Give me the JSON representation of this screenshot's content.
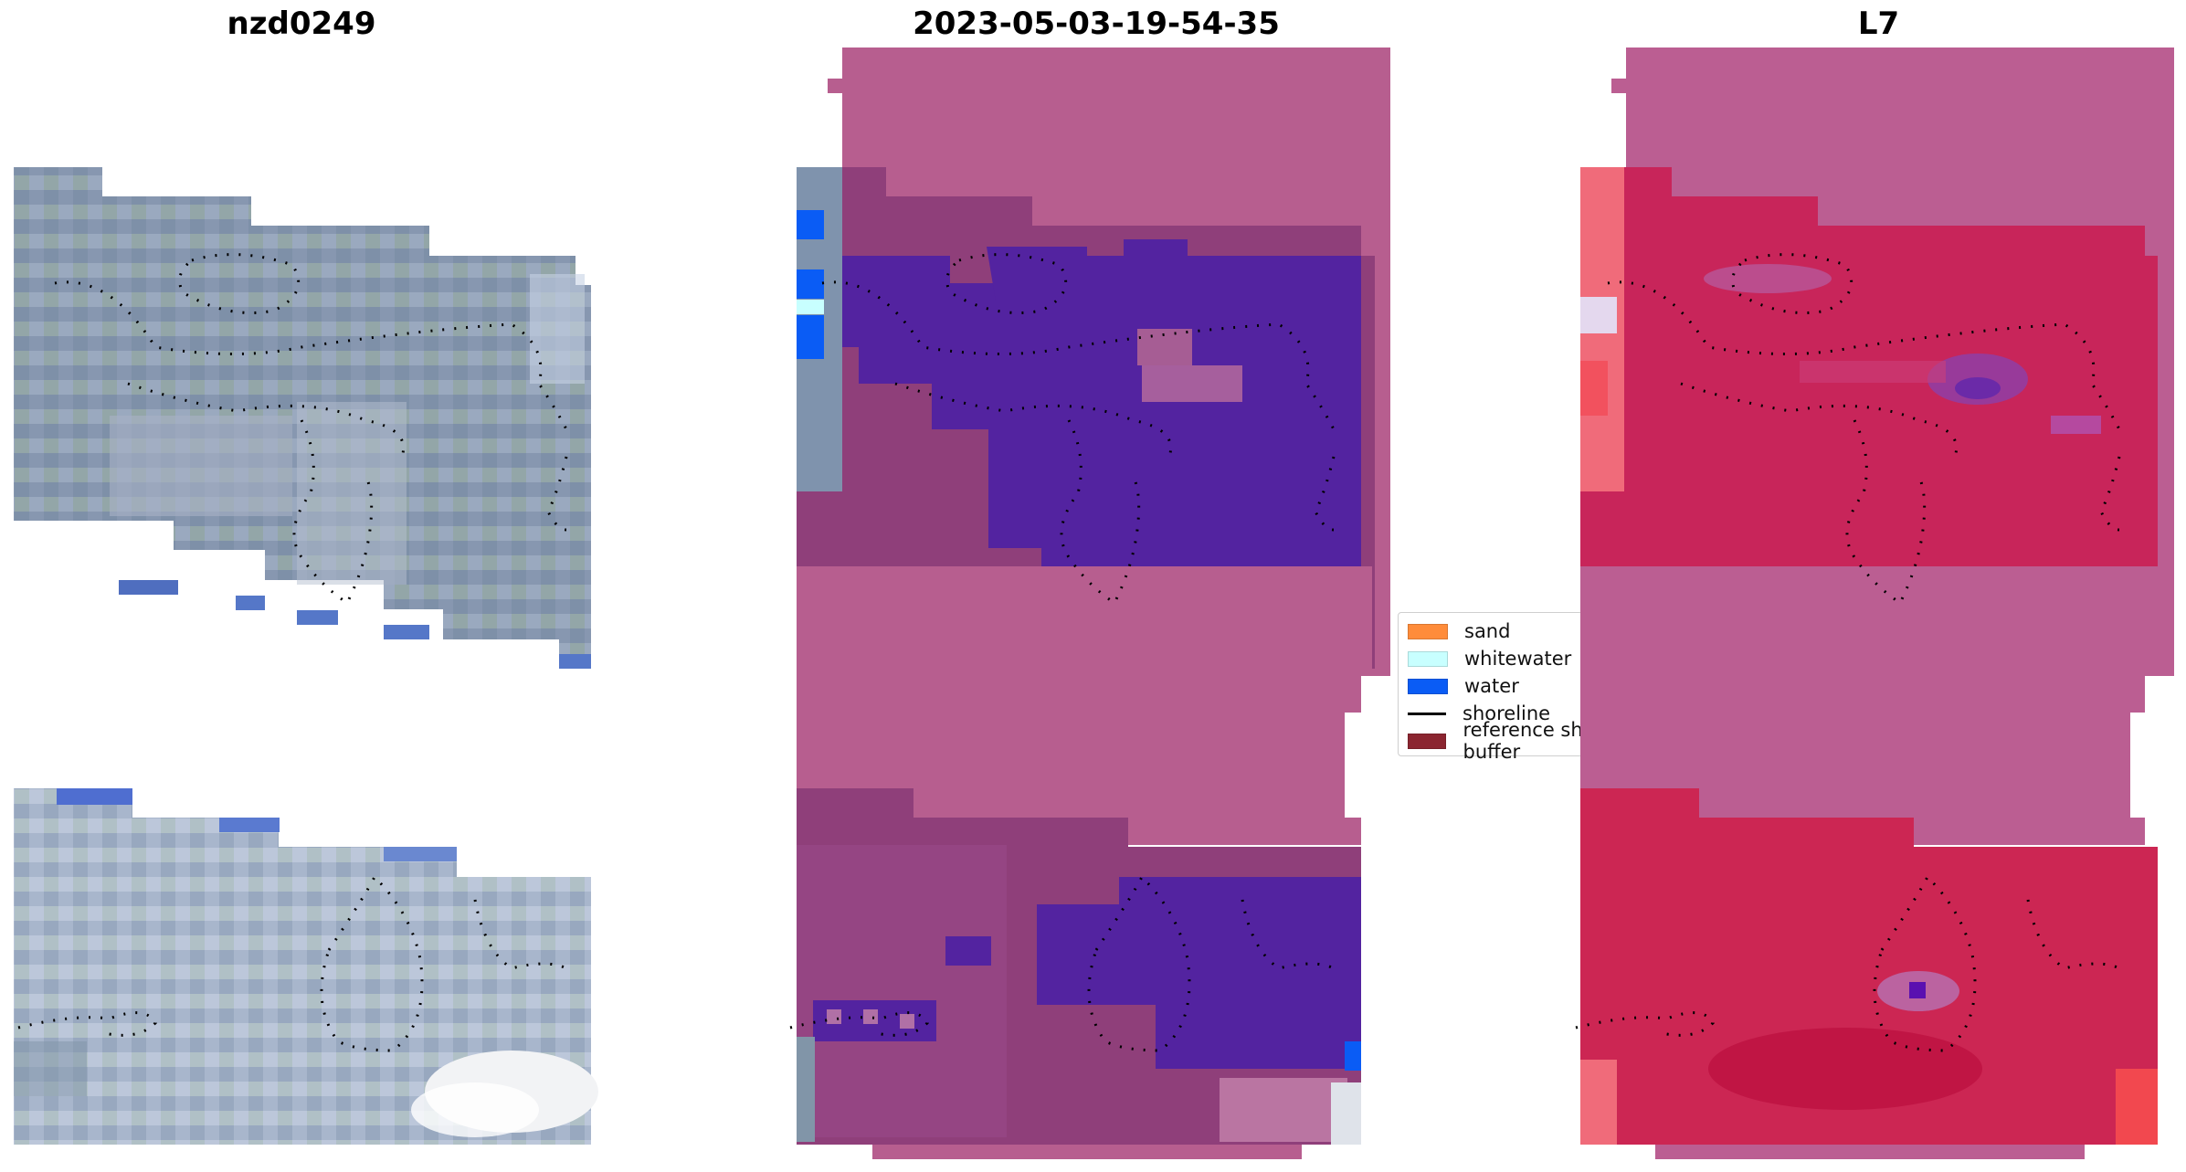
{
  "panels": [
    {
      "title": "nzd0249"
    },
    {
      "title": "2023-05-03-19-54-35"
    },
    {
      "title": "L7"
    }
  ],
  "legend": [
    {
      "label": "sand",
      "color": "#ff8c3a"
    },
    {
      "label": "whitewater",
      "color": "#c8ffff"
    },
    {
      "label": "water",
      "color": "#0a5cf5"
    },
    {
      "label": "shoreline",
      "color": "#000000"
    },
    {
      "label": "reference shoreline buffer",
      "color": "#8b2530"
    }
  ],
  "colors": {
    "rgb_base": "#8a9bb4",
    "rgb_light": "#c9d3e6",
    "buffer_overlay": "#b35a8c",
    "water_class": "#5223a0",
    "ndwi_base": "#c8204e",
    "ndwi_light": "#f0606a"
  }
}
